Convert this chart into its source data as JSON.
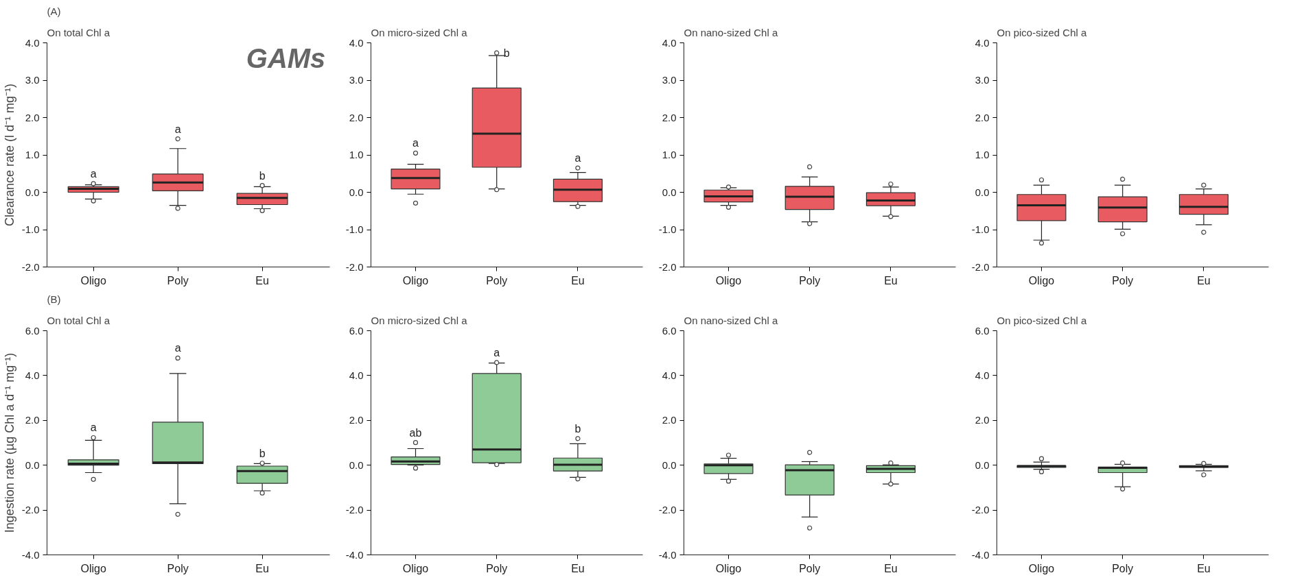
{
  "chart_data": [
    {
      "type": "box",
      "title": "On total Chl a",
      "ylabel": "Clearance rate (l d⁻¹ mg⁻¹)",
      "categories": [
        "Oligo",
        "Poly",
        "Eu"
      ],
      "ylim": [
        -2,
        4
      ],
      "yticks": [
        {
          "value": -2,
          "label": "-2.0"
        },
        {
          "value": -1,
          "label": "-1.0"
        },
        {
          "value": 0,
          "label": "0.0"
        },
        {
          "value": 1,
          "label": "1.0"
        },
        {
          "value": 2,
          "label": "2.0"
        },
        {
          "value": 3,
          "label": "3.0"
        },
        {
          "value": 4,
          "label": "4.0"
        }
      ],
      "series": [
        {
          "color": "#e85c61",
          "boxes": [
            {
              "low": -0.18,
              "q1": 0.0,
              "median": 0.09,
              "q3": 0.15,
              "high": 0.2,
              "outliers": [
                0.23,
                -0.23
              ]
            },
            {
              "low": -0.35,
              "q1": 0.04,
              "median": 0.26,
              "q3": 0.49,
              "high": 1.17,
              "outliers": [
                1.43,
                -0.43
              ]
            },
            {
              "low": -0.44,
              "q1": -0.33,
              "median": -0.15,
              "q3": -0.03,
              "high": 0.15,
              "outliers": [
                0.18,
                -0.49
              ]
            }
          ]
        }
      ],
      "annotations": [
        "(A)",
        "GAMs",
        {
          "text": "a",
          "x": "Oligo",
          "y": 0.2
        },
        {
          "text": "a",
          "x": "Poly",
          "y": 1.17
        },
        {
          "text": "b",
          "x": "Eu",
          "y": 0.15
        }
      ]
    },
    {
      "type": "box",
      "title": "On micro-sized Chl a",
      "categories": [
        "Oligo",
        "Poly",
        "Eu"
      ],
      "ylim": [
        -2,
        4
      ],
      "yticks": [
        {
          "value": -2,
          "label": "-2.0"
        },
        {
          "value": -1,
          "label": "-1.0"
        },
        {
          "value": 0,
          "label": "0.0"
        },
        {
          "value": 1,
          "label": "1.0"
        },
        {
          "value": 2,
          "label": "2.0"
        },
        {
          "value": 3,
          "label": "3.0"
        },
        {
          "value": 4,
          "label": "4.0"
        }
      ],
      "series": [
        {
          "color": "#e85c61",
          "boxes": [
            {
              "low": -0.05,
              "q1": 0.09,
              "median": 0.38,
              "q3": 0.62,
              "high": 0.75,
              "outliers": [
                1.05,
                -0.29
              ]
            },
            {
              "low": 0.09,
              "q1": 0.67,
              "median": 1.57,
              "q3": 2.79,
              "high": 3.66,
              "outliers": [
                3.73,
                0.07
              ]
            },
            {
              "low": -0.35,
              "q1": -0.25,
              "median": 0.07,
              "q3": 0.35,
              "high": 0.53,
              "outliers": [
                0.65,
                -0.38
              ]
            }
          ]
        }
      ],
      "annotations": [
        {
          "text": "a",
          "x": "Oligo",
          "y": 0.75
        },
        {
          "text": "b",
          "x": "Poly",
          "y": 3.66
        },
        {
          "text": "a",
          "x": "Eu",
          "y": 0.53
        }
      ]
    },
    {
      "type": "box",
      "title": "On nano-sized Chl a",
      "categories": [
        "Oligo",
        "Poly",
        "Eu"
      ],
      "ylim": [
        -2,
        4
      ],
      "yticks": [
        {
          "value": -2,
          "label": "-2.0"
        },
        {
          "value": -1,
          "label": "-1.0"
        },
        {
          "value": 0,
          "label": "0.0"
        },
        {
          "value": 1,
          "label": "1.0"
        },
        {
          "value": 2,
          "label": "2.0"
        },
        {
          "value": 3,
          "label": "3.0"
        },
        {
          "value": 4,
          "label": "4.0"
        }
      ],
      "series": [
        {
          "color": "#e85c61",
          "boxes": [
            {
              "low": -0.35,
              "q1": -0.26,
              "median": -0.11,
              "q3": 0.06,
              "high": 0.12,
              "outliers": [
                0.14,
                -0.4
              ]
            },
            {
              "low": -0.79,
              "q1": -0.46,
              "median": -0.12,
              "q3": 0.16,
              "high": 0.41,
              "outliers": [
                0.68,
                -0.84
              ]
            },
            {
              "low": -0.64,
              "q1": -0.36,
              "median": -0.22,
              "q3": -0.01,
              "high": 0.14,
              "outliers": [
                0.22,
                -0.65
              ]
            }
          ]
        }
      ]
    },
    {
      "type": "box",
      "title": "On pico-sized Chl a",
      "categories": [
        "Oligo",
        "Poly",
        "Eu"
      ],
      "ylim": [
        -2,
        4
      ],
      "yticks": [
        {
          "value": -2,
          "label": "-2.0"
        },
        {
          "value": -1,
          "label": "-1.0"
        },
        {
          "value": 0,
          "label": "0.0"
        },
        {
          "value": 1,
          "label": "1.0"
        },
        {
          "value": 2,
          "label": "2.0"
        },
        {
          "value": 3,
          "label": "3.0"
        },
        {
          "value": 4,
          "label": "4.0"
        }
      ],
      "series": [
        {
          "color": "#e85c61",
          "boxes": [
            {
              "low": -1.28,
              "q1": -0.76,
              "median": -0.35,
              "q3": -0.06,
              "high": 0.19,
              "outliers": [
                0.33,
                -1.36
              ]
            },
            {
              "low": -0.99,
              "q1": -0.79,
              "median": -0.41,
              "q3": -0.12,
              "high": 0.19,
              "outliers": [
                0.35,
                -1.11
              ]
            },
            {
              "low": -0.87,
              "q1": -0.59,
              "median": -0.39,
              "q3": -0.06,
              "high": 0.09,
              "outliers": [
                0.19,
                -1.07
              ]
            }
          ]
        }
      ]
    },
    {
      "type": "box",
      "title": "On total Chl a",
      "ylabel": "Ingestion rate (µg Chl a d⁻¹ mg⁻¹)",
      "categories": [
        "Oligo",
        "Poly",
        "Eu"
      ],
      "ylim": [
        -4,
        6
      ],
      "yticks": [
        {
          "value": -4,
          "label": "-4.0"
        },
        {
          "value": -2,
          "label": "-2.0"
        },
        {
          "value": 0,
          "label": "0.0"
        },
        {
          "value": 2,
          "label": "2.0"
        },
        {
          "value": 4,
          "label": "4.0"
        },
        {
          "value": 6,
          "label": "6.0"
        }
      ],
      "series": [
        {
          "color": "#8ecb97",
          "boxes": [
            {
              "low": -0.33,
              "q1": 0.0,
              "median": 0.07,
              "q3": 0.24,
              "high": 1.11,
              "outliers": [
                1.23,
                -0.63
              ]
            },
            {
              "low": -1.72,
              "q1": 0.07,
              "median": 0.12,
              "q3": 1.92,
              "high": 4.09,
              "outliers": [
                4.78,
                -2.19
              ]
            },
            {
              "low": -1.14,
              "q1": -0.81,
              "median": -0.26,
              "q3": -0.04,
              "high": 0.07,
              "outliers": [
                0.09,
                -1.24
              ]
            }
          ]
        }
      ],
      "annotations": [
        "(B)",
        {
          "text": "a",
          "x": "Oligo",
          "y": 1.11
        },
        {
          "text": "a",
          "x": "Poly",
          "y": 4.09
        },
        {
          "text": "b",
          "x": "Eu",
          "y": 0.07
        }
      ]
    },
    {
      "type": "box",
      "title": "On micro-sized Chl a",
      "categories": [
        "Oligo",
        "Poly",
        "Eu"
      ],
      "ylim": [
        -4,
        6
      ],
      "yticks": [
        {
          "value": -4,
          "label": "-4.0"
        },
        {
          "value": -2,
          "label": "-2.0"
        },
        {
          "value": 0,
          "label": "0.0"
        },
        {
          "value": 2,
          "label": "2.0"
        },
        {
          "value": 4,
          "label": "4.0"
        },
        {
          "value": 6,
          "label": "6.0"
        }
      ],
      "series": [
        {
          "color": "#8ecb97",
          "boxes": [
            {
              "low": 0.01,
              "q1": 0.03,
              "median": 0.17,
              "q3": 0.37,
              "high": 0.74,
              "outliers": [
                1.01,
                -0.13
              ]
            },
            {
              "low": 0.08,
              "q1": 0.11,
              "median": 0.7,
              "q3": 4.09,
              "high": 4.56,
              "outliers": [
                4.58,
                0.03
              ]
            },
            {
              "low": -0.54,
              "q1": -0.26,
              "median": 0.02,
              "q3": 0.32,
              "high": 0.96,
              "outliers": [
                1.19,
                -0.61
              ]
            }
          ]
        }
      ],
      "annotations": [
        {
          "text": "ab",
          "x": "Oligo",
          "y": 0.74
        },
        {
          "text": "a",
          "x": "Poly",
          "y": 4.56
        },
        {
          "text": "b",
          "x": "Eu",
          "y": 0.96
        }
      ]
    },
    {
      "type": "box",
      "title": "On nano-sized Chl a",
      "categories": [
        "Oligo",
        "Poly",
        "Eu"
      ],
      "ylim": [
        -4,
        6
      ],
      "yticks": [
        {
          "value": -4,
          "label": "-4.0"
        },
        {
          "value": -2,
          "label": "-2.0"
        },
        {
          "value": 0,
          "label": "0.0"
        },
        {
          "value": 2,
          "label": "2.0"
        },
        {
          "value": 4,
          "label": "4.0"
        },
        {
          "value": 6,
          "label": "6.0"
        }
      ],
      "series": [
        {
          "color": "#8ecb97",
          "boxes": [
            {
              "low": -0.63,
              "q1": -0.37,
              "median": 0.0,
              "q3": 0.06,
              "high": 0.31,
              "outliers": [
                0.45,
                -0.71
              ]
            },
            {
              "low": -2.31,
              "q1": -1.33,
              "median": -0.22,
              "q3": 0.02,
              "high": 0.16,
              "outliers": [
                0.57,
                -2.8
              ]
            },
            {
              "low": -0.84,
              "q1": -0.33,
              "median": -0.16,
              "q3": -0.02,
              "high": 0.02,
              "outliers": [
                0.1,
                -0.84
              ]
            }
          ]
        }
      ]
    },
    {
      "type": "box",
      "title": "On pico-sized Chl a",
      "categories": [
        "Oligo",
        "Poly",
        "Eu"
      ],
      "ylim": [
        -4,
        6
      ],
      "yticks": [
        {
          "value": -4,
          "label": "-4.0"
        },
        {
          "value": -2,
          "label": "-2.0"
        },
        {
          "value": 0,
          "label": "0.0"
        },
        {
          "value": 2,
          "label": "2.0"
        },
        {
          "value": 4,
          "label": "4.0"
        },
        {
          "value": 6,
          "label": "6.0"
        }
      ],
      "series": [
        {
          "color": "#8ecb97",
          "boxes": [
            {
              "low": -0.18,
              "q1": -0.1,
              "median": -0.04,
              "q3": -0.02,
              "high": 0.14,
              "outliers": [
                0.29,
                -0.29
              ]
            },
            {
              "low": -0.96,
              "q1": -0.33,
              "median": -0.12,
              "q3": -0.08,
              "high": 0.04,
              "outliers": [
                0.1,
                -1.06
              ]
            },
            {
              "low": -0.25,
              "q1": -0.1,
              "median": -0.06,
              "q3": -0.02,
              "high": 0.04,
              "outliers": [
                0.08,
                -0.43
              ]
            }
          ]
        }
      ]
    }
  ]
}
